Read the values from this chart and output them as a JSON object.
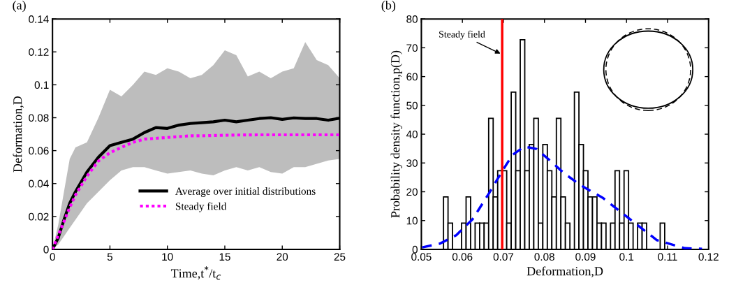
{
  "chart_data": [
    {
      "type": "line",
      "title": "(a)",
      "xlabel": "Time,t$^{*}$/t$_{c}$",
      "ylabel": "Deformation,D",
      "xlim": [
        0,
        25
      ],
      "xticks": [
        0,
        5,
        10,
        15,
        20,
        25
      ],
      "ylim": [
        0,
        0.14
      ],
      "yticks": [
        0,
        0.02,
        0.04,
        0.06,
        0.08,
        0.1,
        0.12,
        0.14
      ],
      "grid": false,
      "legend": "bottom right",
      "series": [
        {
          "name": "Average over initial distributions",
          "color": "#000000",
          "line_style": "solid",
          "x": [
            0,
            0.5,
            1,
            1.5,
            2,
            3,
            4,
            5,
            6,
            7,
            8,
            9,
            10,
            11,
            12,
            13,
            14,
            15,
            16,
            17,
            18,
            19,
            20,
            21,
            22,
            23,
            24,
            25
          ],
          "values": [
            0,
            0.007,
            0.018,
            0.028,
            0.035,
            0.047,
            0.056,
            0.063,
            0.065,
            0.067,
            0.071,
            0.074,
            0.0735,
            0.0755,
            0.0765,
            0.077,
            0.0775,
            0.0785,
            0.0775,
            0.0785,
            0.0795,
            0.08,
            0.079,
            0.0799,
            0.0795,
            0.0795,
            0.0785,
            0.0797
          ],
          "lower": [
            0,
            0.003,
            0.008,
            0.013,
            0.018,
            0.028,
            0.035,
            0.042,
            0.048,
            0.05,
            0.05,
            0.048,
            0.046,
            0.047,
            0.048,
            0.046,
            0.045,
            0.048,
            0.05,
            0.048,
            0.05,
            0.047,
            0.046,
            0.05,
            0.05,
            0.052,
            0.054,
            0.055
          ],
          "upper": [
            0,
            0.015,
            0.035,
            0.055,
            0.062,
            0.065,
            0.08,
            0.097,
            0.093,
            0.1,
            0.108,
            0.106,
            0.11,
            0.108,
            0.104,
            0.106,
            0.112,
            0.121,
            0.118,
            0.105,
            0.108,
            0.104,
            0.108,
            0.11,
            0.126,
            0.115,
            0.112,
            0.104
          ]
        },
        {
          "name": "Steady field",
          "color": "#ff00ff",
          "line_style": "dotted",
          "x": [
            0,
            1,
            1.5,
            2,
            3,
            4,
            5,
            6,
            7,
            8,
            9,
            10,
            11,
            12,
            13,
            14,
            16,
            18,
            20,
            25
          ],
          "values": [
            0,
            0.017,
            0.0255,
            0.033,
            0.0445,
            0.0537,
            0.0587,
            0.062,
            0.065,
            0.067,
            0.0675,
            0.068,
            0.0685,
            0.069,
            0.069,
            0.0692,
            0.0695,
            0.0696,
            0.0696,
            0.0696
          ]
        }
      ]
    },
    {
      "type": "histogram",
      "title": "(b)",
      "xlabel": "Deformation,D",
      "ylabel": "Probability density function,p(D)",
      "xlim": [
        0.05,
        0.12
      ],
      "xticks": [
        0.05,
        0.06,
        0.07,
        0.08,
        0.09,
        0.1,
        0.11,
        0.12
      ],
      "ylim": [
        0,
        80
      ],
      "yticks": [
        0,
        10,
        20,
        30,
        40,
        50,
        60,
        70,
        80
      ],
      "grid": false,
      "color": "#ffffff",
      "bins": [
        0.0554,
        0.0565,
        0.0576,
        0.0587,
        0.0598,
        0.0609,
        0.062,
        0.0631,
        0.0642,
        0.0653,
        0.0664,
        0.0675,
        0.0686,
        0.0697,
        0.0708,
        0.0719,
        0.073,
        0.0741,
        0.0752,
        0.0763,
        0.0774,
        0.0785,
        0.0796,
        0.0807,
        0.0818,
        0.0829,
        0.084,
        0.0851,
        0.0862,
        0.0873,
        0.0884,
        0.0895,
        0.0906,
        0.0917,
        0.0928,
        0.0939,
        0.095,
        0.0961,
        0.0972,
        0.0983,
        0.0994,
        0.1005,
        0.1016,
        0.1027,
        0.1038,
        0.1049,
        0.106,
        0.1071,
        0.1082,
        0.1093
      ],
      "values": [
        18.2,
        9.1,
        0,
        0,
        9.1,
        18.2,
        0,
        9.1,
        9.1,
        9.1,
        45.5,
        18.2,
        27.3,
        27.3,
        9.1,
        54.6,
        27.3,
        72.8,
        27.3,
        36.4,
        45.5,
        9.1,
        36.4,
        27.3,
        18.2,
        45.5,
        18.2,
        9.1,
        0,
        54.6,
        36.4,
        27.3,
        18.2,
        18.2,
        9.1,
        9.1,
        0,
        9.1,
        27.3,
        9.1,
        27.3,
        9.1,
        0,
        9.1,
        9.1,
        0,
        0,
        0,
        9.1
      ],
      "series": [
        {
          "type": "line",
          "color": "#0000ff",
          "line_style": "dashed",
          "x": [
            0.0502,
            0.0545,
            0.0585,
            0.0625,
            0.0665,
            0.0699,
            0.0722,
            0.0751,
            0.078,
            0.0814,
            0.0848,
            0.0888,
            0.0943,
            0.1,
            0.1074,
            0.1142,
            0.1184
          ],
          "values": [
            0.7,
            2.0,
            4.9,
            10.5,
            19.5,
            27.6,
            32.8,
            35.7,
            34.9,
            30.8,
            26.4,
            22.3,
            17.8,
            11.4,
            3.2,
            0.4,
            0.2
          ]
        }
      ],
      "ref_lines": [
        {
          "axis": "x",
          "value": 0.0697,
          "color": "#ff0000",
          "line_style": "solid"
        }
      ],
      "annotations": [
        {
          "text": "Steady field",
          "x": 0.0697,
          "y": 67.7
        }
      ]
    }
  ]
}
